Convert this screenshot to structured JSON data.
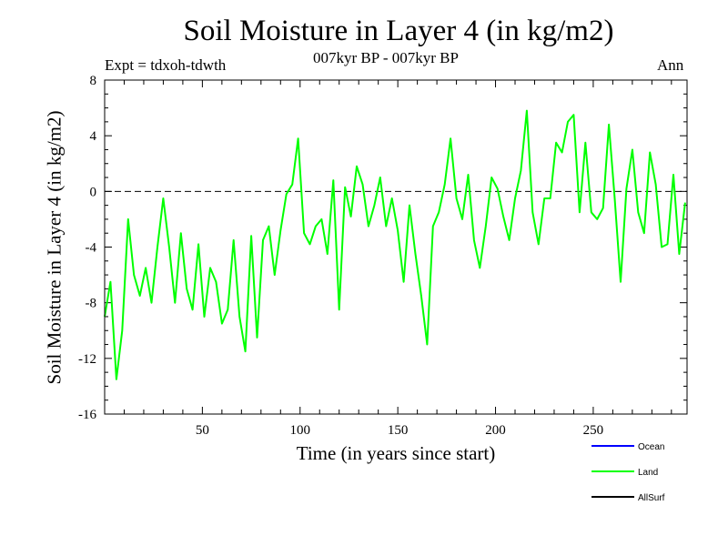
{
  "chart_data": {
    "type": "line",
    "title": "Soil Moisture in Layer 4 (in kg/m2)",
    "subtitle": "007kyr BP - 007kyr BP",
    "experiment": "Expt = tdxoh-tdwth",
    "season": "Ann",
    "xlabel": "Time (in years since start)",
    "ylabel": "Soil Moisture in Layer 4 (in kg/m2)",
    "xlim": [
      0,
      298
    ],
    "ylim": [
      -16,
      8
    ],
    "xticks": [
      50,
      100,
      150,
      200,
      250
    ],
    "yticks": [
      -16,
      -12,
      -8,
      -4,
      0,
      4,
      8
    ],
    "zero_line": "dashed",
    "legend": [
      {
        "name": "Ocean",
        "color": "#0000ff"
      },
      {
        "name": "Land",
        "color": "#00ff00"
      },
      {
        "name": "AllSurf",
        "color": "#000000"
      }
    ],
    "series": [
      {
        "name": "Land",
        "color": "#00ff00",
        "x": [
          0,
          3,
          6,
          9,
          12,
          15,
          18,
          21,
          24,
          27,
          30,
          33,
          36,
          39,
          42,
          45,
          48,
          51,
          54,
          57,
          60,
          63,
          66,
          69,
          72,
          75,
          78,
          81,
          84,
          87,
          90,
          93,
          96,
          99,
          102,
          105,
          108,
          111,
          114,
          117,
          120,
          123,
          126,
          129,
          132,
          135,
          138,
          141,
          144,
          147,
          150,
          153,
          156,
          159,
          162,
          165,
          168,
          171,
          174,
          177,
          180,
          183,
          186,
          189,
          192,
          195,
          198,
          201,
          204,
          207,
          210,
          213,
          216,
          219,
          222,
          225,
          228,
          231,
          234,
          237,
          240,
          243,
          246,
          249,
          252,
          255,
          258,
          261,
          264,
          267,
          270,
          273,
          276,
          279,
          282,
          285,
          288,
          291,
          294,
          297
        ],
        "values": [
          -9,
          -6.5,
          -13.5,
          -10,
          -2,
          -6,
          -7.5,
          -5.5,
          -8,
          -4,
          -0.5,
          -4,
          -8,
          -3,
          -7,
          -8.5,
          -3.8,
          -9,
          -5.5,
          -6.5,
          -9.5,
          -8.5,
          -3.5,
          -9,
          -11.5,
          -3.2,
          -10.5,
          -3.5,
          -2.5,
          -6,
          -2.8,
          -0.2,
          0.5,
          3.8,
          -3,
          -3.8,
          -2.5,
          -2,
          -4.5,
          0.8,
          -8.5,
          0.3,
          -1.8,
          1.8,
          0.5,
          -2.5,
          -1,
          1,
          -2.5,
          -0.5,
          -2.8,
          -6.5,
          -1,
          -4.5,
          -7.5,
          -11,
          -2.5,
          -1.5,
          0.5,
          3.8,
          -0.5,
          -2,
          1.2,
          -3.5,
          -5.5,
          -2.5,
          1,
          0.2,
          -1.8,
          -3.5,
          -0.5,
          1.5,
          5.8,
          -1.5,
          -3.8,
          -0.5,
          -0.5,
          3.5,
          2.8,
          5,
          5.5,
          -1.5,
          3.5,
          -1.5,
          -2,
          -1.2,
          4.8,
          -0.5,
          -6.5,
          0.2,
          3,
          -1.5,
          -3,
          2.8,
          0.5,
          -4,
          -3.8,
          1.2,
          -4.5,
          -0.8
        ]
      }
    ]
  }
}
